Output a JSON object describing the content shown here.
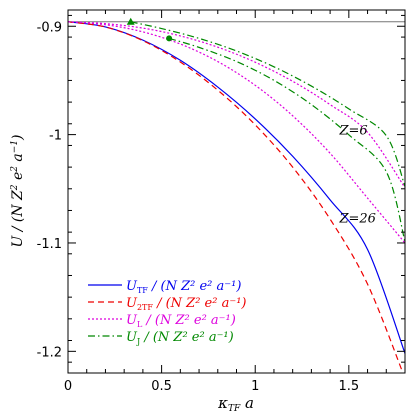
{
  "chart_data": {
    "type": "line",
    "xlabel": "κ_TF a",
    "ylabel": "U / (N Z² e² a⁻¹)",
    "xlim": [
      0,
      1.8
    ],
    "ylim": [
      -1.22,
      -0.885
    ],
    "x_ticks": [
      "0",
      "0.5",
      "1",
      "1.5"
    ],
    "y_ticks": [
      "-0.9",
      "-1",
      "-1.1",
      "-1.2"
    ],
    "reference_line": {
      "y": -0.8959,
      "color": "#777777"
    },
    "series": [
      {
        "name": "U_TF / (N Z² e² a⁻¹)",
        "color": "#0000ee",
        "dash": "",
        "x": [
          0,
          0.2,
          0.4,
          0.6,
          0.8,
          1.0,
          1.2,
          1.4,
          1.6,
          1.8
        ],
        "y": [
          -0.8959,
          -0.9006,
          -0.9128,
          -0.9314,
          -0.9561,
          -0.9855,
          -1.02,
          -1.0602,
          -1.106,
          -1.202
        ]
      },
      {
        "name": "U_2TF / (N Z² e² a⁻¹)",
        "color": "#ee0000",
        "dash": "6,4",
        "x": [
          0,
          0.2,
          0.4,
          0.6,
          0.8,
          1.0,
          1.2,
          1.4,
          1.6,
          1.8
        ],
        "y": [
          -0.8959,
          -0.9007,
          -0.9133,
          -0.933,
          -0.959,
          -0.991,
          -1.03,
          -1.078,
          -1.138,
          -1.225
        ]
      },
      {
        "name": "U_L / (N Z² e² a⁻¹)",
        "color": "#dd00dd",
        "dash": "2,2",
        "x": [
          0,
          0.2,
          0.4,
          0.6,
          0.8,
          1.0,
          1.2,
          1.4,
          1.6,
          1.8
        ],
        "y": [
          -0.8959,
          -0.8976,
          -0.9017,
          -0.9089,
          -0.9193,
          -0.9332,
          -0.9508,
          -0.9723,
          -0.9979,
          -1.049
        ],
        "label": "Z=6"
      },
      {
        "name": "U_L / (N Z² e² a⁻¹)",
        "color": "#dd00dd",
        "dash": "2,2",
        "x": [
          0,
          0.2,
          0.4,
          0.6,
          0.8,
          1.0,
          1.2,
          1.4,
          1.6,
          1.8
        ],
        "y": [
          -0.8959,
          -0.8986,
          -0.9052,
          -0.9164,
          -0.9326,
          -0.9545,
          -0.9826,
          -1.0172,
          -1.0586,
          -1.1
        ],
        "label": "Z=26"
      },
      {
        "name": "U_J / (N Z² e² a⁻¹)",
        "color": "#008800",
        "dash": "7,3,1.5,3",
        "x": [
          0.335,
          0.5,
          0.7,
          0.9,
          1.1,
          1.3,
          1.5,
          1.7,
          1.8
        ],
        "y": [
          -0.8959,
          -0.9021,
          -0.9112,
          -0.9228,
          -0.9374,
          -0.9552,
          -0.9763,
          -1.001,
          -1.048
        ]
      },
      {
        "name": "U_J / (N Z² e² a⁻¹)",
        "color": "#008800",
        "dash": "7,3,1.5,3",
        "x": [
          0.54,
          0.7,
          0.9,
          1.1,
          1.3,
          1.5,
          1.7,
          1.8
        ],
        "y": [
          -0.9112,
          -0.9195,
          -0.9325,
          -0.9499,
          -0.9723,
          -1.0002,
          -1.0342,
          -1.099
        ]
      }
    ],
    "markers": [
      {
        "shape": "triangle",
        "x": 0.335,
        "y": -0.8959,
        "color": "#008800"
      },
      {
        "shape": "circle",
        "x": 0.54,
        "y": -0.9112,
        "color": "#008800"
      }
    ],
    "annotations": [
      {
        "text": "Z=6",
        "x": 1.45,
        "y": -1.0
      },
      {
        "text": "Z=26",
        "x": 1.45,
        "y": -1.081
      }
    ],
    "legend": {
      "placement": "bottom-left",
      "entries": [
        {
          "sym": "U",
          "sub": "TF",
          "rest": " / (N Z² e² a⁻¹)",
          "color": "#0000ee",
          "dash": ""
        },
        {
          "sym": "U",
          "sub": "2TF",
          "rest": " / (N Z² e² a⁻¹)",
          "color": "#ee0000",
          "dash": "6,4"
        },
        {
          "sym": "U",
          "sub": "L",
          "rest": " / (N Z² e² a⁻¹)",
          "color": "#dd00dd",
          "dash": "2,2"
        },
        {
          "sym": "U",
          "sub": "J",
          "rest": " / (N Z² e² a⁻¹)",
          "color": "#008800",
          "dash": "7,3,1.5,3"
        }
      ]
    }
  }
}
